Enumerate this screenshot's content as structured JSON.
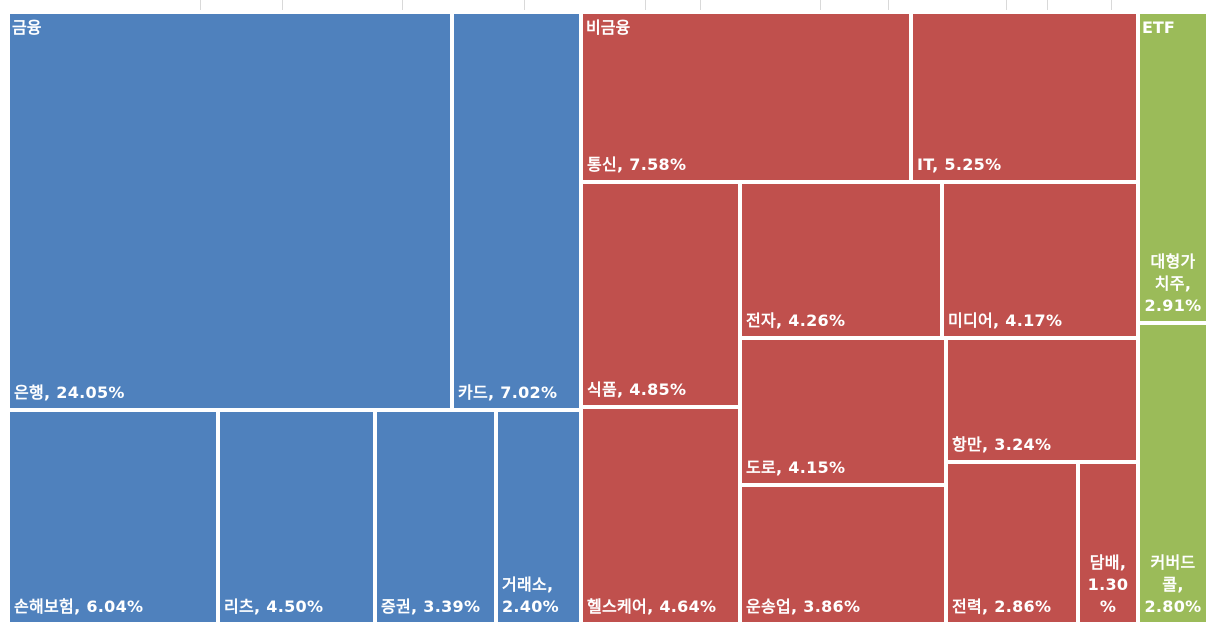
{
  "colors": {
    "finance": "#4f81bd",
    "non_finance": "#c0504d",
    "etf": "#9bbb59",
    "border": "#ffffff",
    "text": "#ffffff"
  },
  "chart_data": {
    "type": "treemap",
    "unit": "%",
    "groups": [
      {
        "name": "금융",
        "color": "#4f81bd",
        "items": [
          {
            "name": "은행",
            "value": 24.05,
            "label": "은행, 24.05%"
          },
          {
            "name": "카드",
            "value": 7.02,
            "label": "카드, 7.02%"
          },
          {
            "name": "손해보험",
            "value": 6.04,
            "label": "손해보험, 6.04%"
          },
          {
            "name": "리츠",
            "value": 4.5,
            "label": "리츠, 4.50%"
          },
          {
            "name": "증권",
            "value": 3.39,
            "label": "증권, 3.39%"
          },
          {
            "name": "거래소",
            "value": 2.4,
            "label": "거래소, 2.40%"
          }
        ]
      },
      {
        "name": "비금융",
        "color": "#c0504d",
        "items": [
          {
            "name": "통신",
            "value": 7.58,
            "label": "통신, 7.58%"
          },
          {
            "name": "IT",
            "value": 5.25,
            "label": "IT, 5.25%"
          },
          {
            "name": "식품",
            "value": 4.85,
            "label": "식품, 4.85%"
          },
          {
            "name": "전자",
            "value": 4.26,
            "label": "전자, 4.26%"
          },
          {
            "name": "미디어",
            "value": 4.17,
            "label": "미디어, 4.17%"
          },
          {
            "name": "헬스케어",
            "value": 4.64,
            "label": "헬스케어, 4.64%"
          },
          {
            "name": "도로",
            "value": 4.15,
            "label": "도로, 4.15%"
          },
          {
            "name": "항만",
            "value": 3.24,
            "label": "항만, 3.24%"
          },
          {
            "name": "운송업",
            "value": 3.86,
            "label": "운송업, 3.86%"
          },
          {
            "name": "전력",
            "value": 2.86,
            "label": "전력, 2.86%"
          },
          {
            "name": "담배",
            "value": 1.3,
            "label": "담배, 1.30%"
          }
        ]
      },
      {
        "name": "ETF",
        "color": "#9bbb59",
        "items": [
          {
            "name": "대형가치주",
            "value": 2.91,
            "label": "대형가치주, 2.91%"
          },
          {
            "name": "커버드콜",
            "value": 2.8,
            "label": "커버드콜, 2.80%"
          }
        ]
      }
    ]
  }
}
